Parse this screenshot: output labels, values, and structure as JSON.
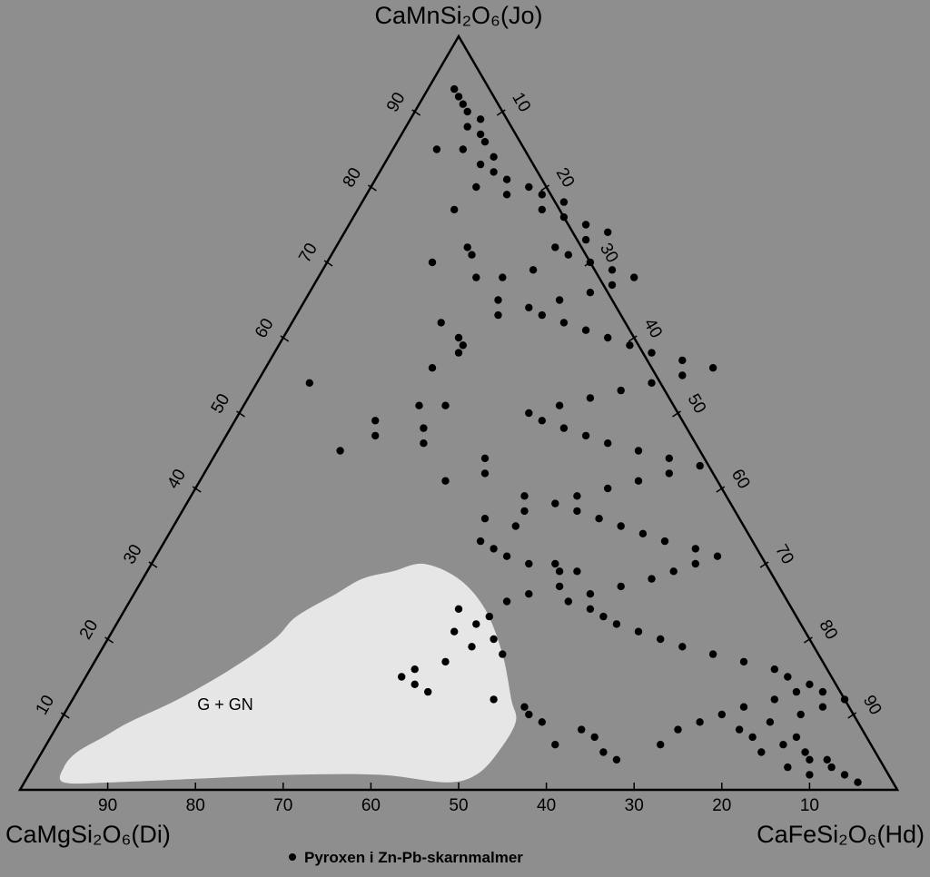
{
  "chart_data": {
    "type": "scatter",
    "subtype": "ternary",
    "colors": {
      "background": "#8e8e8e",
      "field": "#e6e6e6",
      "points": "#000000",
      "axes": "#000000"
    },
    "vertices": {
      "top": "CaMnSi₂O₆(Jo)",
      "left": "CaMgSi₂O₆(Di)",
      "right": "CaFeSi₂O₆(Hd)"
    },
    "tick_values": [
      10,
      20,
      30,
      40,
      50,
      60,
      70,
      80,
      90
    ],
    "tick_labels": [
      "10",
      "20",
      "30",
      "40",
      "50",
      "60",
      "70",
      "80",
      "90"
    ],
    "region": {
      "label": "G + GN",
      "outline_jo_hd": [
        [
          1,
          4.5
        ],
        [
          3,
          3.5
        ],
        [
          5,
          4
        ],
        [
          7,
          6
        ],
        [
          9,
          8
        ],
        [
          12,
          12
        ],
        [
          16,
          16
        ],
        [
          20,
          19
        ],
        [
          23,
          20
        ],
        [
          26,
          23
        ],
        [
          28,
          25
        ],
        [
          29,
          28
        ],
        [
          30,
          31
        ],
        [
          28,
          36
        ],
        [
          24,
          41
        ],
        [
          18,
          46
        ],
        [
          12,
          50
        ],
        [
          9,
          52
        ],
        [
          5,
          52
        ],
        [
          2,
          51
        ],
        [
          1,
          48
        ],
        [
          2,
          40
        ],
        [
          2,
          30
        ],
        [
          1.5,
          20
        ],
        [
          1,
          10
        ]
      ]
    },
    "legend": {
      "label": "Pyroxen i Zn-Pb-skarnmalmer"
    },
    "series": [
      {
        "name": "Pyroxen i Zn-Pb-skarnmalmer",
        "points_jo_hd": [
          [
            88,
            7
          ],
          [
            85,
            5
          ],
          [
            85,
            8
          ],
          [
            80,
            12
          ],
          [
            79,
            16
          ],
          [
            77,
            11
          ],
          [
            72,
            15
          ],
          [
            70,
            12
          ],
          [
            71,
            16
          ],
          [
            68,
            21
          ],
          [
            69,
            24
          ],
          [
            68,
            18
          ],
          [
            65,
            22
          ],
          [
            63,
            23
          ],
          [
            62,
            17
          ],
          [
            60,
            20
          ],
          [
            59,
            21
          ],
          [
            58,
            21
          ],
          [
            56,
            19
          ],
          [
            54,
            6
          ],
          [
            51,
            23
          ],
          [
            51,
            20
          ],
          [
            49,
            16
          ],
          [
            47,
            17
          ],
          [
            45,
            14
          ],
          [
            46,
            23
          ],
          [
            48,
            22
          ],
          [
            44,
            31
          ],
          [
            42,
            32
          ],
          [
            41,
            28
          ],
          [
            39,
            38
          ],
          [
            37,
            39
          ],
          [
            36,
            35
          ],
          [
            35,
            39
          ],
          [
            33,
            36
          ],
          [
            32,
            38
          ],
          [
            31,
            40
          ],
          [
            30,
            43
          ],
          [
            30,
            46
          ],
          [
            29,
            49
          ],
          [
            29,
            47
          ],
          [
            27,
            48
          ],
          [
            26,
            45
          ],
          [
            25,
            43
          ],
          [
            24,
            38
          ],
          [
            23,
            42
          ],
          [
            22,
            41
          ],
          [
            21,
            39
          ],
          [
            20,
            44
          ],
          [
            19,
            42
          ],
          [
            18,
            46
          ],
          [
            17,
            40
          ],
          [
            16,
            37
          ],
          [
            15,
            36
          ],
          [
            14,
            38
          ],
          [
            13,
            40
          ],
          [
            12,
            48
          ],
          [
            11,
            52
          ],
          [
            10,
            53
          ],
          [
            9,
            55
          ],
          [
            8,
            60
          ],
          [
            7,
            62
          ],
          [
            6,
            58
          ],
          [
            5,
            64
          ],
          [
            4,
            66
          ],
          [
            6,
            70
          ],
          [
            8,
            71
          ],
          [
            9,
            73
          ],
          [
            10,
            75
          ],
          [
            11,
            77
          ],
          [
            12,
            80
          ],
          [
            13,
            82
          ],
          [
            7,
            85
          ],
          [
            5,
            87
          ],
          [
            4,
            88
          ],
          [
            3,
            86
          ],
          [
            2,
            89
          ],
          [
            1,
            95
          ],
          [
            2,
            93
          ],
          [
            3,
            91
          ],
          [
            4,
            90
          ],
          [
            5,
            82
          ],
          [
            6,
            84
          ],
          [
            7,
            80
          ],
          [
            8,
            78
          ],
          [
            9,
            81
          ],
          [
            10,
            84
          ],
          [
            11,
            86
          ],
          [
            12,
            88
          ],
          [
            13,
            85
          ],
          [
            14,
            83
          ],
          [
            15,
            80
          ],
          [
            16,
            78
          ],
          [
            17,
            74
          ],
          [
            18,
            70
          ],
          [
            19,
            66
          ],
          [
            20,
            63
          ],
          [
            21,
            60
          ],
          [
            22,
            57
          ],
          [
            23,
            55
          ],
          [
            24,
            53
          ],
          [
            25,
            50
          ],
          [
            26,
            52
          ],
          [
            27,
            55
          ],
          [
            28,
            58
          ],
          [
            29,
            60
          ],
          [
            30,
            62
          ],
          [
            31,
            64
          ],
          [
            32,
            61
          ],
          [
            33,
            57
          ],
          [
            34,
            54
          ],
          [
            35,
            51
          ],
          [
            36,
            48
          ],
          [
            37,
            45
          ],
          [
            38,
            42
          ],
          [
            39,
            44
          ],
          [
            40,
            47
          ],
          [
            41,
            50
          ],
          [
            42,
            53
          ],
          [
            43,
            56
          ],
          [
            44,
            52
          ],
          [
            45,
            48
          ],
          [
            46,
            44
          ],
          [
            47,
            41
          ],
          [
            48,
            38
          ],
          [
            49,
            35
          ],
          [
            50,
            33
          ],
          [
            51,
            36
          ],
          [
            52,
            39
          ],
          [
            53,
            42
          ],
          [
            54,
            45
          ],
          [
            55,
            48
          ],
          [
            56,
            51
          ],
          [
            57,
            47
          ],
          [
            58,
            43
          ],
          [
            59,
            40
          ],
          [
            60,
            37
          ],
          [
            61,
            34
          ],
          [
            62,
            31
          ],
          [
            63,
            28
          ],
          [
            64,
            26
          ],
          [
            65,
            29
          ],
          [
            66,
            32
          ],
          [
            67,
            34
          ],
          [
            68,
            36
          ],
          [
            69,
            33
          ],
          [
            70,
            30
          ],
          [
            71,
            27
          ],
          [
            72,
            25
          ],
          [
            73,
            28
          ],
          [
            74,
            30
          ],
          [
            75,
            27
          ],
          [
            76,
            24
          ],
          [
            77,
            21
          ],
          [
            78,
            23
          ],
          [
            79,
            20
          ],
          [
            80,
            18
          ],
          [
            81,
            15
          ],
          [
            82,
            13
          ],
          [
            83,
            11
          ],
          [
            84,
            12
          ],
          [
            86,
            10
          ],
          [
            87,
            9
          ],
          [
            89,
            8
          ],
          [
            90,
            6
          ],
          [
            91,
            5
          ],
          [
            92,
            4
          ],
          [
            93,
            3
          ]
        ]
      }
    ]
  }
}
